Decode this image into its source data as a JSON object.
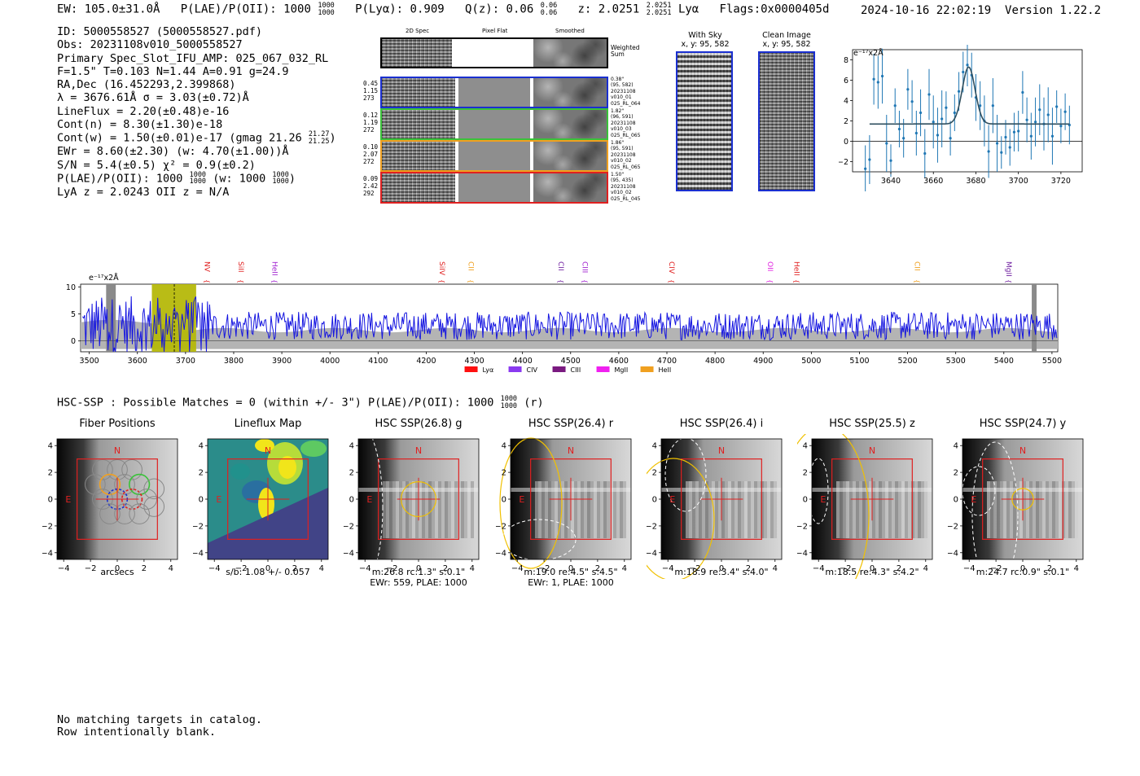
{
  "header": {
    "ew": "EW: 105.0±31.0Å",
    "plae_label": "P(LAE)/P(OII): 1000",
    "plae_hi": "1000",
    "plae_lo": "1000",
    "plya": "P(Lyα): 0.909",
    "qz_label": "Q(z): 0.06",
    "qz_hi": "0.06",
    "qz_lo": "0.06",
    "z_label": "z: 2.0251",
    "z_hi": "2.0251",
    "z_lo": "2.0251",
    "line": "Lyα",
    "flags": "Flags:0x0000405d",
    "datetime": "2024-10-16 22:02:19",
    "version": "Version 1.22.2"
  },
  "info": {
    "id": "ID: 5000558527 (5000558527.pdf)",
    "obs": "Obs: 20231108v010_5000558527",
    "primary": "Primary Spec_Slot_IFU_AMP: 025_067_032_RL",
    "fit": "F=1.5\"  T=0.103  N=1.44  A=0.91  g=24.9",
    "radec": "RA,Dec (16.452293,2.399868)",
    "lambda": "λ = 3676.61Å  σ = 3.03(±0.72)Å",
    "lineflux": "LineFlux = 2.20(±0.48)e-16",
    "contn": "Cont(n) = 8.30(±1.30)e-18",
    "contw": "Cont(w) = 1.50(±0.01)e-17 (gmag 21.26",
    "contw_hi": "21.27",
    "contw_lo": "21.25",
    "contw_end": ")",
    "ewr": "EWr = 8.60(±2.30) (w: 4.70(±1.00))Å",
    "sn": "S/N = 5.4(±0.5)  χ² = 0.9(±0.2)",
    "plae": "P(LAE)/P(OII): 1000",
    "plae_hi": "1000",
    "plae_lo": "1000",
    "plae_w": "(w: 1000",
    "plae_w_hi": "1000",
    "plae_w_lo": "1000",
    "plae_w_end": ")",
    "lya": "LyA z = 2.0243  OII z = N/A"
  },
  "spec2d": {
    "col_headers": [
      "2D Spec",
      "Pixel Flat",
      "Smoothed"
    ],
    "weighted": "Weighted Sum",
    "rows": [
      {
        "left": [
          "0.45",
          "1.15",
          "273"
        ],
        "right": [
          "0.38\"",
          "(95, 582)",
          "20231108",
          "v010_01",
          "025_RL_064"
        ],
        "color": "#1a2fd0"
      },
      {
        "left": [
          "0.12",
          "1.19",
          "272"
        ],
        "right": [
          "1.82\"",
          "(96, 591)",
          "20231108",
          "v010_03",
          "025_RL_065"
        ],
        "color": "#3ac23a"
      },
      {
        "left": [
          "0.10",
          "2.07",
          "272"
        ],
        "right": [
          "1.86\"",
          "(95, 591)",
          "20231108",
          "v010_02",
          "025_RL_065"
        ],
        "color": "#f0a020"
      },
      {
        "left": [
          "0.09",
          "2.42",
          "292"
        ],
        "right": [
          "1.50\"",
          "(95, 435)",
          "20231108",
          "v010_02",
          "025_RL_045"
        ],
        "color": "#e02020"
      }
    ]
  },
  "cutouts": {
    "sky_title": "With Sky",
    "sky_xy": "x, y: 95, 582",
    "clean_title": "Clean Image",
    "clean_xy": "x, y: 95, 582"
  },
  "zoom_fit": {
    "ylabel": "e⁻¹⁷x2Å",
    "xticks": [
      "3640",
      "3660",
      "3680",
      "3700",
      "3720"
    ],
    "yticks": [
      "8",
      "6",
      "4",
      "2",
      "0",
      "−2"
    ]
  },
  "spectrum": {
    "ylabel": "e⁻¹⁷x2Å",
    "yticks": [
      "10",
      "5",
      "0"
    ],
    "xticks": [
      "3500",
      "3600",
      "3700",
      "3800",
      "3900",
      "4000",
      "4100",
      "4200",
      "4300",
      "4400",
      "4500",
      "4600",
      "4700",
      "4800",
      "4900",
      "5000",
      "5100",
      "5200",
      "5300",
      "5400",
      "5500"
    ],
    "lines": [
      {
        "label": "NV",
        "color": "#e02020"
      },
      {
        "label": "SiII",
        "color": "#e02020"
      },
      {
        "label": "HeII",
        "color": "#a020d0"
      },
      {
        "label": "SiIV",
        "color": "#e02020"
      },
      {
        "label": "CII",
        "color": "#f0a020"
      },
      {
        "label": "CII",
        "color": "#7020a0"
      },
      {
        "label": "CIII",
        "color": "#a020d0"
      },
      {
        "label": "CIV",
        "color": "#e02020"
      },
      {
        "label": "OII",
        "color": "#e020e0"
      },
      {
        "label": "HeII",
        "color": "#e02020"
      },
      {
        "label": "CII",
        "color": "#f0a020"
      },
      {
        "label": "MgII",
        "color": "#7020a0"
      }
    ],
    "legend": [
      {
        "label": "Lyα",
        "color": "#ff1010"
      },
      {
        "label": "CIV",
        "color": "#8a3af0"
      },
      {
        "label": "CIII",
        "color": "#7a1a80"
      },
      {
        "label": "MgII",
        "color": "#f020f0"
      },
      {
        "label": "HeII",
        "color": "#f0a020"
      }
    ]
  },
  "hsc": {
    "summary": "HSC-SSP : Possible Matches = 0 (within +/- 3\")  P(LAE)/P(OII): 1000",
    "summary_hi": "1000",
    "summary_lo": "1000",
    "summary_end": "(r)",
    "panels": [
      {
        "title": "Fiber Positions",
        "cap1": "arcsecs",
        "cap2": ""
      },
      {
        "title": "Lineflux Map",
        "cap1": "s/b: 1.08 +/- 0.057",
        "cap2": ""
      },
      {
        "title": "HSC SSP(26.8) g",
        "cap1": "m:26.8 rc:1.3\"  s:0.1\"",
        "cap2": "EWr: 559, PLAE: 1000"
      },
      {
        "title": "HSC SSP(26.4) r",
        "cap1": "m:19.0  re:4.5\"  s:4.5\"",
        "cap2": "EWr: 1, PLAE: 1000"
      },
      {
        "title": "HSC SSP(26.4) i",
        "cap1": "m:18.9  re:3.4\"  s:4.0\"",
        "cap2": ""
      },
      {
        "title": "HSC SSP(25.5) z",
        "cap1": "m:18.5  re:4.3\"  s:4.2\"",
        "cap2": ""
      },
      {
        "title": "HSC SSP(24.7) y",
        "cap1": "m:24.7 rc:0.9\"  s:0.1\"",
        "cap2": ""
      }
    ],
    "xticks": [
      "−4",
      "−2",
      "0",
      "2",
      "4"
    ],
    "yticks": [
      "4",
      "2",
      "0",
      "−2",
      "−4"
    ],
    "north": "N",
    "east": "E"
  },
  "footer": {
    "line1": "No matching targets in catalog.",
    "line2": "Row intentionally blank."
  }
}
